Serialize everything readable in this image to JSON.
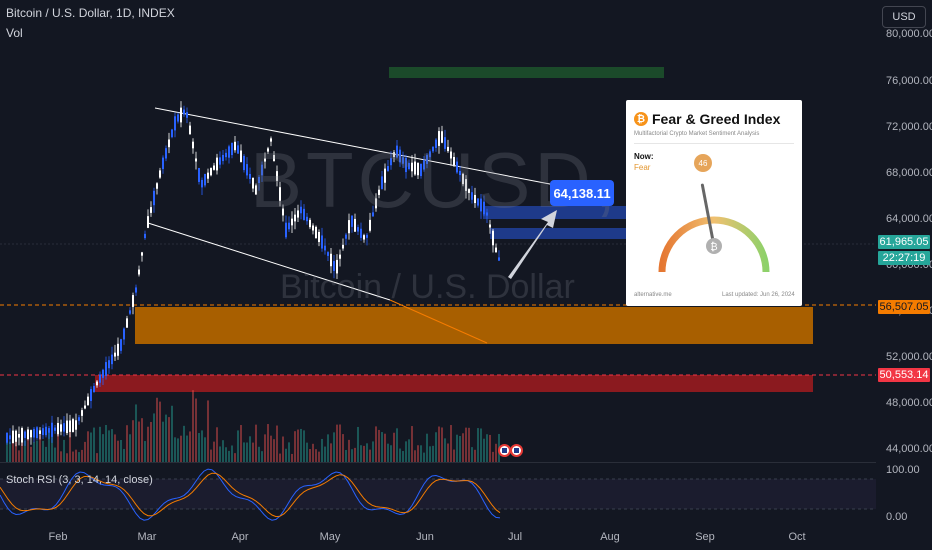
{
  "header": {
    "symbol_title": "Bitcoin / U.S. Dollar, 1D, INDEX",
    "volume_label": "Vol",
    "currency": "USD"
  },
  "watermark": {
    "ticker": "BTCUSD, 1D",
    "name": "Bitcoin / U.S. Dollar"
  },
  "price_axis": {
    "ticks": [
      "80,000.00",
      "76,000.00",
      "72,000.00",
      "68,000.00",
      "64,000.00",
      "60,000.00",
      "56,000.00",
      "52,000.00",
      "48,000.00",
      "44,000.00"
    ],
    "current_price": "61,965.05",
    "countdown": "22:27:19",
    "level_1": "56,507.05",
    "level_2": "50,553.14"
  },
  "rsi_axis": {
    "ticks": [
      "100.00",
      "0.00"
    ]
  },
  "time_axis": {
    "ticks": [
      "Feb",
      "Mar",
      "Apr",
      "May",
      "Jun",
      "Jul",
      "Aug",
      "Sep",
      "Oct"
    ]
  },
  "indicator": {
    "label": "Stoch RSI (3, 3, 14, 14, close)"
  },
  "annotation": {
    "target_price": "64,138.11"
  },
  "fear_greed": {
    "title": "Fear & Greed Index",
    "subtitle": "Multifactorial Crypto Market Sentiment Analysis",
    "now_label": "Now:",
    "now_value": "Fear",
    "value": "46",
    "source": "alternative.me",
    "updated": "Last updated: Jun 26, 2024",
    "level": 0.46
  },
  "colors": {
    "background": "#131722",
    "up": "#2962ff",
    "down": "#ffffff",
    "support_zone": "#a85f00",
    "demand_zone": "#8b1a1f",
    "current_price": "#26a69a",
    "level_tag_1": "#f57c00",
    "level_tag_2": "#f23645",
    "target_zone": "#1e3a8a",
    "top_bar": "#1b4a2a"
  }
}
